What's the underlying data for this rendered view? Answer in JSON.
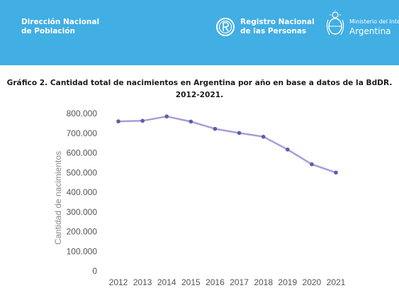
{
  "header": {
    "left_org": [
      "Dirección Nacional",
      "de Población"
    ],
    "center_org": [
      "Registro Nacional",
      "de las Personas"
    ],
    "right_org_small": "Ministerio del Inte",
    "right_org_big": "Argentina"
  },
  "colors": {
    "banner": "#41aee4",
    "line": "#a99cd6",
    "marker": "#5560a8",
    "axis_text": "#555555"
  },
  "chart_data": {
    "type": "line",
    "title": [
      "Gráfico 2. Cantidad total de nacimientos en Argentina por año en base a  datos de la BdDR.",
      "2012-2021."
    ],
    "ylabel": "Cantidad de nacimientos",
    "xlabel": "",
    "x": [
      "2012",
      "2013",
      "2014",
      "2015",
      "2016",
      "2017",
      "2018",
      "2019",
      "2020",
      "2021"
    ],
    "values": [
      760000,
      763000,
      785000,
      759000,
      722000,
      701000,
      682000,
      617000,
      542000,
      500000
    ],
    "ylim": [
      0,
      800000
    ],
    "yticks": [
      0,
      100000,
      200000,
      300000,
      400000,
      500000,
      600000,
      700000,
      800000
    ],
    "ytick_labels": [
      "0",
      "100.000",
      "200.000",
      "300.000",
      "400.000",
      "500.000",
      "600.000",
      "700.000",
      "800.000"
    ],
    "grid": false
  }
}
